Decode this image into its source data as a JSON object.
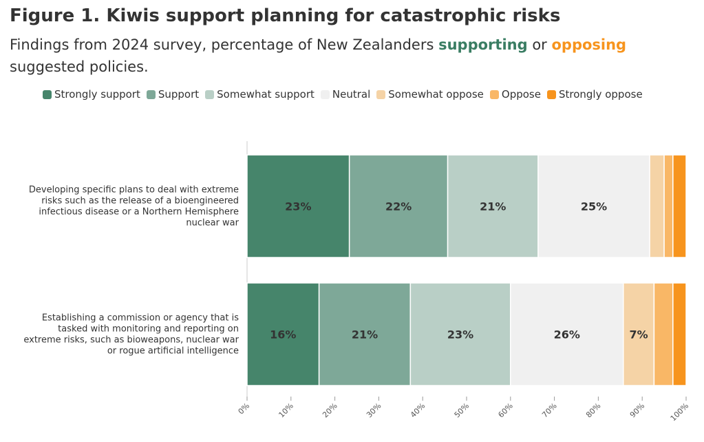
{
  "title": "Figure 1. Kiwis support planning for catastrophic risks",
  "subtitle": {
    "prefix": "Findings from 2024 survey, percentage of New Zealanders ",
    "supporting": "supporting",
    "middle": " or ",
    "opposing": "opposing",
    "suffix": " suggested policies."
  },
  "colors": {
    "supporting": "#3a7d63",
    "opposing": "#f7941d"
  },
  "chart_data": {
    "type": "bar",
    "orientation": "horizontal",
    "stacked": true,
    "xlim": [
      0,
      100
    ],
    "x_ticks": [
      "0%",
      "10%",
      "20%",
      "30%",
      "40%",
      "50%",
      "60%",
      "70%",
      "80%",
      "90%",
      "100%"
    ],
    "legend_position": "top",
    "series": [
      {
        "name": "Strongly support",
        "color": "#46856b",
        "values": [
          23.3,
          16.4
        ],
        "labels": [
          "23%",
          "16%"
        ]
      },
      {
        "name": "Support",
        "color": "#7ea898",
        "values": [
          22.4,
          20.8
        ],
        "labels": [
          "22%",
          "21%"
        ]
      },
      {
        "name": "Somewhat support",
        "color": "#b9cfc6",
        "values": [
          20.6,
          22.8
        ],
        "labels": [
          "21%",
          "23%"
        ]
      },
      {
        "name": "Neutral",
        "color": "#f0f0f0",
        "values": [
          25.4,
          25.7
        ],
        "labels": [
          "25%",
          "26%"
        ]
      },
      {
        "name": "Somewhat oppose",
        "color": "#f5d3a6",
        "values": [
          3.3,
          7.0
        ],
        "labels": [
          "",
          "7%"
        ]
      },
      {
        "name": "Oppose",
        "color": "#f9b766",
        "values": [
          2.0,
          4.3
        ],
        "labels": [
          "",
          ""
        ]
      },
      {
        "name": "Strongly oppose",
        "color": "#f7941d",
        "values": [
          3.0,
          3.0
        ],
        "labels": [
          "",
          ""
        ]
      }
    ],
    "categories": [
      [
        "Developing specific plans to deal with extreme",
        "risks such as the release of a bioengineered",
        "infectious disease or a Northern Hemisphere",
        "nuclear war"
      ],
      [
        "Establishing a commission or agency that is",
        "tasked with monitoring and reporting on",
        "extreme risks, such as bioweapons, nuclear war",
        "or rogue artificial intelligence"
      ]
    ]
  }
}
